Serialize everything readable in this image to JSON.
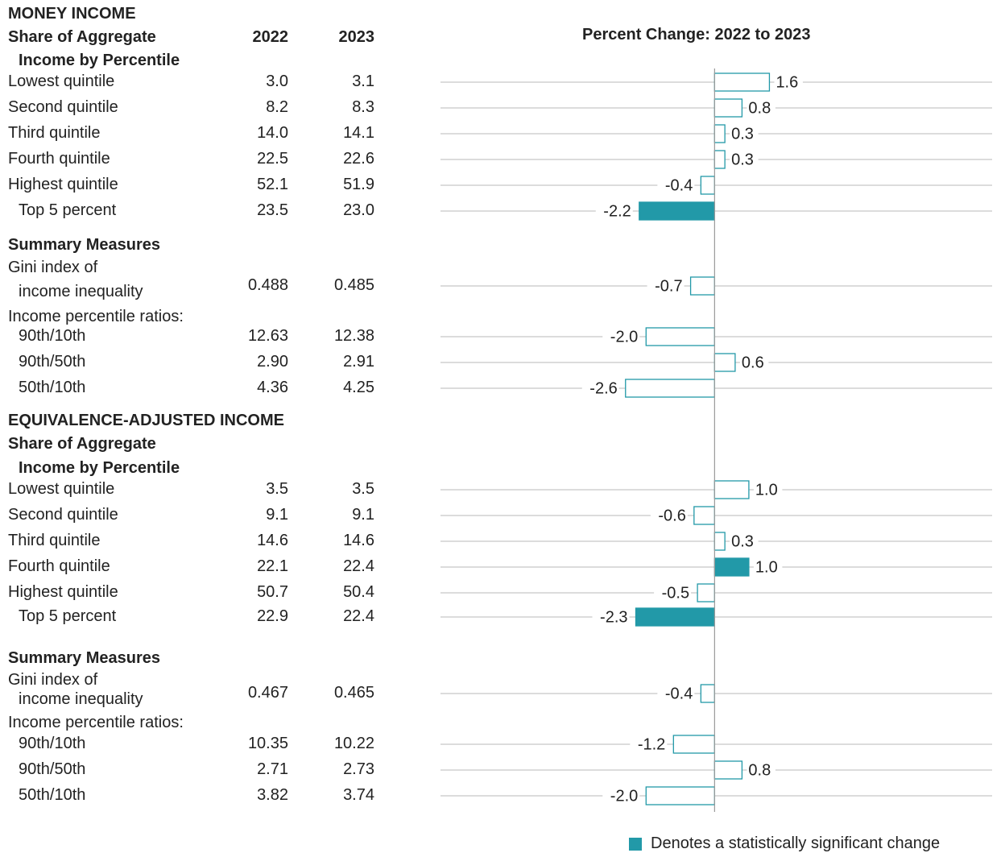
{
  "table_headers": {
    "year_a": "2022",
    "year_b": "2023",
    "chart_title": "Percent Change: 2022 to 2023"
  },
  "sections": [
    {
      "title": "MONEY INCOME",
      "share_heading_1": "Share of Aggregate",
      "share_heading_2": "Income by Percentile",
      "summary_heading": "Summary Measures",
      "gini_label_1": "Gini index of",
      "gini_label_2": "income inequality",
      "ratios_label": "Income percentile ratios:",
      "rows": [
        {
          "label": "Lowest quintile",
          "v2022": "3.0",
          "v2023": "3.1",
          "change": 1.6,
          "change_label": "1.6",
          "significant": false
        },
        {
          "label": "Second quintile",
          "v2022": "8.2",
          "v2023": "8.3",
          "change": 0.8,
          "change_label": "0.8",
          "significant": false
        },
        {
          "label": "Third quintile",
          "v2022": "14.0",
          "v2023": "14.1",
          "change": 0.3,
          "change_label": "0.3",
          "significant": false
        },
        {
          "label": "Fourth quintile",
          "v2022": "22.5",
          "v2023": "22.6",
          "change": 0.3,
          "change_label": "0.3",
          "significant": false
        },
        {
          "label": "Highest quintile",
          "v2022": "52.1",
          "v2023": "51.9",
          "change": -0.4,
          "change_label": "-0.4",
          "significant": false
        },
        {
          "label": "Top 5 percent",
          "v2022": "23.5",
          "v2023": "23.0",
          "change": -2.2,
          "change_label": "-2.2",
          "significant": true
        },
        {
          "label": "",
          "v2022": "0.488",
          "v2023": "0.485",
          "change": -0.7,
          "change_label": "-0.7",
          "significant": false
        },
        {
          "label": "90th/10th",
          "v2022": "12.63",
          "v2023": "12.38",
          "change": -2.0,
          "change_label": "-2.0",
          "significant": false
        },
        {
          "label": "90th/50th",
          "v2022": "2.90",
          "v2023": "2.91",
          "change": 0.6,
          "change_label": "0.6",
          "significant": false
        },
        {
          "label": "50th/10th",
          "v2022": "4.36",
          "v2023": "4.25",
          "change": -2.6,
          "change_label": "-2.6",
          "significant": false
        }
      ]
    },
    {
      "title": "EQUIVALENCE-ADJUSTED INCOME",
      "share_heading_1": "Share of Aggregate",
      "share_heading_2": "Income by Percentile",
      "summary_heading": "Summary Measures",
      "gini_label_1": "Gini index of",
      "gini_label_2": "income inequality",
      "ratios_label": "Income percentile ratios:",
      "rows": [
        {
          "label": "Lowest quintile",
          "v2022": "3.5",
          "v2023": "3.5",
          "change": 1.0,
          "change_label": "1.0",
          "significant": false
        },
        {
          "label": "Second quintile",
          "v2022": "9.1",
          "v2023": "9.1",
          "change": -0.6,
          "change_label": "-0.6",
          "significant": false
        },
        {
          "label": "Third quintile",
          "v2022": "14.6",
          "v2023": "14.6",
          "change": 0.3,
          "change_label": "0.3",
          "significant": false
        },
        {
          "label": "Fourth quintile",
          "v2022": "22.1",
          "v2023": "22.4",
          "change": 1.0,
          "change_label": "1.0",
          "significant": true
        },
        {
          "label": "Highest quintile",
          "v2022": "50.7",
          "v2023": "50.4",
          "change": -0.5,
          "change_label": "-0.5",
          "significant": false
        },
        {
          "label": "Top 5 percent",
          "v2022": "22.9",
          "v2023": "22.4",
          "change": -2.3,
          "change_label": "-2.3",
          "significant": true
        },
        {
          "label": "",
          "v2022": "0.467",
          "v2023": "0.465",
          "change": -0.4,
          "change_label": "-0.4",
          "significant": false
        },
        {
          "label": "90th/10th",
          "v2022": "10.35",
          "v2023": "10.22",
          "change": -1.2,
          "change_label": "-1.2",
          "significant": false
        },
        {
          "label": "90th/50th",
          "v2022": "2.71",
          "v2023": "2.73",
          "change": 0.8,
          "change_label": "0.8",
          "significant": false
        },
        {
          "label": "50th/10th",
          "v2022": "3.82",
          "v2023": "3.74",
          "change": -2.0,
          "change_label": "-2.0",
          "significant": false
        }
      ]
    }
  ],
  "legend": {
    "label": "Denotes a statistically significant change"
  },
  "colors": {
    "accent": "#2299A8",
    "gridline": "#B8B8B8",
    "axis": "#9A9A9A",
    "text": "#222222"
  },
  "chart_data": {
    "type": "bar",
    "orientation": "horizontal",
    "title": "Percent Change: 2022 to 2023",
    "categories": [
      "Lowest quintile",
      "Second quintile",
      "Third quintile",
      "Fourth quintile",
      "Highest quintile",
      "Top 5 percent",
      "Gini index of income inequality",
      "90th/10th",
      "90th/50th",
      "50th/10th",
      "Lowest quintile",
      "Second quintile",
      "Third quintile",
      "Fourth quintile",
      "Highest quintile",
      "Top 5 percent",
      "Gini index of income inequality",
      "90th/10th",
      "90th/50th",
      "50th/10th"
    ],
    "values": [
      1.6,
      0.8,
      0.3,
      0.3,
      -0.4,
      -2.2,
      -0.7,
      -2.0,
      0.6,
      -2.6,
      1.0,
      -0.6,
      0.3,
      1.0,
      -0.5,
      -2.3,
      -0.4,
      -1.2,
      0.8,
      -2.0
    ],
    "significant": [
      false,
      false,
      false,
      false,
      false,
      true,
      false,
      false,
      false,
      false,
      false,
      false,
      false,
      true,
      false,
      true,
      false,
      false,
      false,
      false
    ],
    "xlim": [
      -8,
      8.1
    ],
    "grid": true,
    "legend_position": "bottom-right"
  }
}
